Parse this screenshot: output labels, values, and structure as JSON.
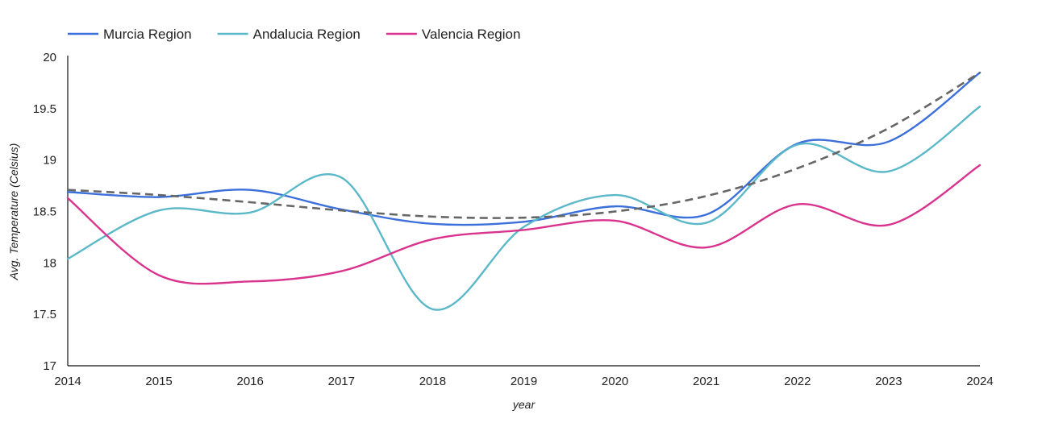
{
  "chart_data": {
    "type": "line",
    "x": [
      2014,
      2015,
      2016,
      2017,
      2018,
      2019,
      2020,
      2021,
      2022,
      2023,
      2024
    ],
    "series": [
      {
        "name": "Murcia Region",
        "color": "#3b6fd9",
        "values": [
          18.69,
          18.64,
          18.71,
          18.52,
          18.38,
          18.4,
          18.55,
          18.47,
          19.16,
          19.18,
          19.85
        ]
      },
      {
        "name": "Andalucia Region",
        "color": "#5bb8c9",
        "values": [
          18.04,
          18.51,
          18.49,
          18.83,
          17.55,
          18.35,
          18.66,
          18.39,
          19.15,
          18.89,
          19.52
        ]
      },
      {
        "name": "Valencia Region",
        "color": "#d9338e",
        "values": [
          18.63,
          17.88,
          17.82,
          17.92,
          18.23,
          18.32,
          18.41,
          18.15,
          18.57,
          18.37,
          18.95
        ]
      }
    ],
    "trendline": {
      "style": "dashed",
      "color": "#666666",
      "values": [
        18.71,
        18.66,
        18.59,
        18.51,
        18.45,
        18.44,
        18.5,
        18.65,
        18.92,
        19.31,
        19.85
      ]
    },
    "xlabel": "year",
    "ylabel": "Avg. Temperature (Celsius)",
    "xlim": [
      2014,
      2024
    ],
    "ylim": [
      17,
      20
    ],
    "yticks": [
      "17",
      "17.5",
      "18",
      "18.5",
      "19",
      "19.5",
      "20"
    ],
    "xticks": [
      "2014",
      "2015",
      "2016",
      "2017",
      "2018",
      "2019",
      "2020",
      "2021",
      "2022",
      "2023",
      "2024"
    ],
    "legend_position": "top-left",
    "grid": false
  }
}
